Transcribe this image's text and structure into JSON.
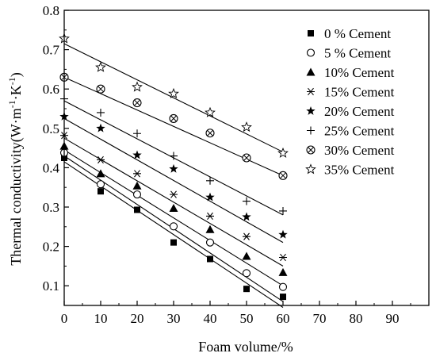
{
  "chart_data": {
    "type": "scatter",
    "title": "",
    "xlabel": "Foam volume/%",
    "ylabel_base": "Thermal conductivity(W·m",
    "ylabel_exp1": "-1",
    "ylabel_mid": "·K",
    "ylabel_exp2": "-1",
    "ylabel_end": ")",
    "xlim": [
      0,
      100
    ],
    "ylim": [
      0.05,
      0.8
    ],
    "xticks": [
      0,
      10,
      20,
      30,
      40,
      50,
      60,
      70,
      80,
      90
    ],
    "xtick_labels": [
      "0",
      "10",
      "20",
      "30",
      "40",
      "50",
      "60",
      "70",
      "80",
      "90"
    ],
    "yticks": [
      0.1,
      0.2,
      0.3,
      0.4,
      0.5,
      0.6,
      0.7,
      0.8
    ],
    "ytick_labels": [
      "0.1",
      "0.2",
      "0.3",
      "0.4",
      "0.5",
      "0.6",
      "0.7",
      "0.8"
    ],
    "grid": false,
    "legend_position": "right",
    "series": [
      {
        "name": "0 % Cement",
        "marker": "filled-square",
        "x": [
          0,
          10,
          20,
          30,
          40,
          50,
          60
        ],
        "y": [
          0.425,
          0.34,
          0.293,
          0.21,
          0.168,
          0.092,
          0.072
        ],
        "fit": [
          0.415,
          0.045
        ]
      },
      {
        "name": "5 % Cement",
        "marker": "open-circle",
        "x": [
          0,
          10,
          20,
          30,
          40,
          50,
          60
        ],
        "y": [
          0.438,
          0.358,
          0.332,
          0.251,
          0.21,
          0.132,
          0.097
        ],
        "fit": [
          0.43,
          0.06
        ]
      },
      {
        "name": "10% Cement",
        "marker": "filled-triangle",
        "x": [
          0,
          10,
          20,
          30,
          40,
          50,
          60
        ],
        "y": [
          0.455,
          0.385,
          0.354,
          0.297,
          0.243,
          0.175,
          0.134
        ],
        "fit": [
          0.445,
          0.1
        ]
      },
      {
        "name": "15% Cement",
        "marker": "asterisk",
        "x": [
          0,
          10,
          20,
          30,
          40,
          50,
          60
        ],
        "y": [
          0.482,
          0.42,
          0.385,
          0.332,
          0.277,
          0.225,
          0.172
        ],
        "fit": [
          0.475,
          0.15
        ]
      },
      {
        "name": "20% Cement",
        "marker": "filled-star",
        "x": [
          0,
          10,
          20,
          30,
          40,
          50,
          60
        ],
        "y": [
          0.53,
          0.5,
          0.432,
          0.397,
          0.325,
          0.275,
          0.23
        ],
        "fit": [
          0.525,
          0.21
        ]
      },
      {
        "name": "25% Cement",
        "marker": "plus",
        "x": [
          0,
          10,
          20,
          30,
          40,
          50,
          60
        ],
        "y": [
          0.575,
          0.54,
          0.487,
          0.43,
          0.367,
          0.315,
          0.29
        ],
        "fit": [
          0.57,
          0.28
        ]
      },
      {
        "name": "30% Cement",
        "marker": "circle-x",
        "x": [
          0,
          10,
          20,
          30,
          40,
          50,
          60
        ],
        "y": [
          0.63,
          0.6,
          0.565,
          0.525,
          0.488,
          0.425,
          0.38
        ],
        "fit": [
          0.63,
          0.38
        ]
      },
      {
        "name": "35% Cement",
        "marker": "open-star",
        "x": [
          0,
          10,
          20,
          30,
          40,
          50,
          60
        ],
        "y": [
          0.728,
          0.655,
          0.605,
          0.588,
          0.54,
          0.503,
          0.437
        ],
        "fit": [
          0.715,
          0.44
        ]
      }
    ]
  }
}
